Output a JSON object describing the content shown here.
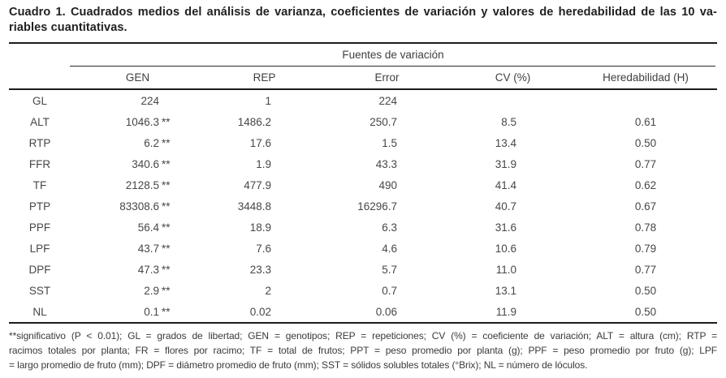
{
  "caption": {
    "lines": [
      "Cuadro 1. Cuadrados medios del análisis de varianza, coeficientes de variación y valores de heredabilidad de las 10 va-",
      "riables cuantitativas."
    ]
  },
  "table": {
    "span_header": "Fuentes de variación",
    "columns": [
      "",
      "GEN",
      "REP",
      "Error",
      "CV (%)",
      "Heredabilidad (H)"
    ],
    "rows": [
      {
        "var": "GL",
        "gen": "224",
        "sig": "",
        "rep": "1",
        "error": "224",
        "cv": "",
        "h": ""
      },
      {
        "var": "ALT",
        "gen": "1046.3",
        "sig": "**",
        "rep": "1486.2",
        "error": "250.7",
        "cv": "8.5",
        "h": "0.61"
      },
      {
        "var": "RTP",
        "gen": "6.2",
        "sig": "**",
        "rep": "17.6",
        "error": "1.5",
        "cv": "13.4",
        "h": "0.50"
      },
      {
        "var": "FFR",
        "gen": "340.6",
        "sig": "**",
        "rep": "1.9",
        "error": "43.3",
        "cv": "31.9",
        "h": "0.77"
      },
      {
        "var": "TF",
        "gen": "2128.5",
        "sig": "**",
        "rep": "477.9",
        "error": "490",
        "cv": "41.4",
        "h": "0.62"
      },
      {
        "var": "PTP",
        "gen": "83308.6",
        "sig": "**",
        "rep": "3448.8",
        "error": "16296.7",
        "cv": "40.7",
        "h": "0.67"
      },
      {
        "var": "PPF",
        "gen": "56.4",
        "sig": "**",
        "rep": "18.9",
        "error": "6.3",
        "cv": "31.6",
        "h": "0.78"
      },
      {
        "var": "LPF",
        "gen": "43.7",
        "sig": "**",
        "rep": "7.6",
        "error": "4.6",
        "cv": "10.6",
        "h": "0.79"
      },
      {
        "var": "DPF",
        "gen": "47.3",
        "sig": "**",
        "rep": "23.3",
        "error": "5.7",
        "cv": "11.0",
        "h": "0.77"
      },
      {
        "var": "SST",
        "gen": "2.9",
        "sig": "**",
        "rep": "2",
        "error": "0.7",
        "cv": "13.1",
        "h": "0.50"
      },
      {
        "var": "NL",
        "gen": "0.1",
        "sig": "**",
        "rep": "0.02",
        "error": "0.06",
        "cv": "11.9",
        "h": "0.50"
      }
    ]
  },
  "footnote": {
    "lines": [
      "**significativo (P < 0.01); GL = grados de libertad; GEN = genotipos; REP = repeticiones; CV (%) = coeficiente de variación; ALT = altura (cm); RTP =",
      "racimos totales por planta; FR = flores por racimo; TF = total de frutos; PPT = peso promedio por planta (g); PPF = peso promedio por fruto (g); LPF",
      "= largo promedio de fruto (mm); DPF = diámetro promedio de fruto (mm); SST = sólidos solubles totales (°Brix); NL = número de lóculos."
    ]
  }
}
